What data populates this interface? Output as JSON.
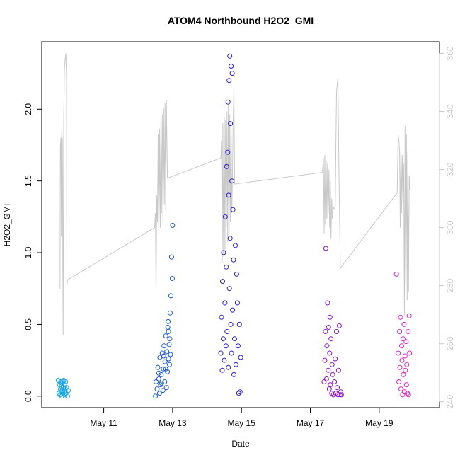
{
  "chart_data": {
    "type": "scatter",
    "title": "ATOM4 Northbound H2O2_GMI",
    "xlabel": "Date",
    "ylabel": "H2O2_GMI",
    "x_axis": {
      "unit": "days since May 1",
      "range": [
        9.2,
        20.75
      ],
      "ticks": [
        {
          "value": 11,
          "label": "May 11"
        },
        {
          "value": 13,
          "label": "May 13"
        },
        {
          "value": 15,
          "label": "May 15"
        },
        {
          "value": 17,
          "label": "May 17"
        },
        {
          "value": 19,
          "label": "May 19"
        }
      ]
    },
    "y_left": {
      "range": [
        -0.08,
        2.47
      ],
      "ticks": [
        0.0,
        0.5,
        1.0,
        1.5,
        2.0
      ],
      "tick_labels": [
        "0.0",
        "0.5",
        "1.0",
        "1.5",
        "2.0"
      ]
    },
    "y_right": {
      "range": [
        238,
        364
      ],
      "ticks": [
        240,
        260,
        280,
        300,
        320,
        340,
        360
      ],
      "tick_labels": [
        "240",
        "260",
        "280",
        "300",
        "320",
        "340",
        "360"
      ],
      "color": "#c8c8c8"
    },
    "series": [
      {
        "marker": "open-circle",
        "color": "#13a4e8",
        "points": [
          [
            9.68,
            0.11
          ],
          [
            9.7,
            0.02
          ],
          [
            9.72,
            0.08
          ],
          [
            9.73,
            0.01
          ],
          [
            9.74,
            0.05
          ],
          [
            9.75,
            0.1
          ],
          [
            9.76,
            0.03
          ],
          [
            9.77,
            0.07
          ],
          [
            9.78,
            0.0
          ],
          [
            9.79,
            0.09
          ],
          [
            9.8,
            0.04
          ],
          [
            9.81,
            0.1
          ],
          [
            9.82,
            0.02
          ],
          [
            9.83,
            0.06
          ],
          [
            9.84,
            0.11
          ],
          [
            9.85,
            0.03
          ],
          [
            9.86,
            0.08
          ],
          [
            9.87,
            0.01
          ],
          [
            9.88,
            0.05
          ],
          [
            9.89,
            0.1
          ],
          [
            9.9,
            0.02
          ],
          [
            9.92,
            0.06
          ],
          [
            9.95,
            0.0
          ],
          [
            9.97,
            0.04
          ]
        ]
      },
      {
        "marker": "open-circle",
        "color": "#1a5ad6",
        "points": [
          [
            12.5,
            0.0
          ],
          [
            12.52,
            0.1
          ],
          [
            12.55,
            0.05
          ],
          [
            12.57,
            0.2
          ],
          [
            12.6,
            0.12
          ],
          [
            12.62,
            0.02
          ],
          [
            12.63,
            0.27
          ],
          [
            12.65,
            0.08
          ],
          [
            12.67,
            0.15
          ],
          [
            12.7,
            0.3
          ],
          [
            12.72,
            0.04
          ],
          [
            12.73,
            0.19
          ],
          [
            12.75,
            0.35
          ],
          [
            12.77,
            0.1
          ],
          [
            12.78,
            0.24
          ],
          [
            12.8,
            0.42
          ],
          [
            12.82,
            0.06
          ],
          [
            12.83,
            0.31
          ],
          [
            12.85,
            0.17
          ],
          [
            12.86,
            0.48
          ],
          [
            12.87,
            0.52
          ],
          [
            12.88,
            0.26
          ],
          [
            12.9,
            0.36
          ],
          [
            12.91,
            0.22
          ],
          [
            12.92,
            0.4
          ],
          [
            12.93,
            0.58
          ],
          [
            12.94,
            0.29
          ],
          [
            12.95,
            0.7
          ],
          [
            12.97,
            0.97
          ],
          [
            12.99,
            0.82
          ],
          [
            13.0,
            1.19
          ],
          [
            12.6,
            0.16
          ],
          [
            12.68,
            0.09
          ],
          [
            12.74,
            0.28
          ],
          [
            12.8,
            0.19
          ],
          [
            12.88,
            0.45
          ]
        ]
      },
      {
        "marker": "open-circle",
        "color": "#2a1bd2",
        "points": [
          [
            14.4,
            0.3
          ],
          [
            14.42,
            0.55
          ],
          [
            14.44,
            0.18
          ],
          [
            14.45,
            0.8
          ],
          [
            14.47,
            0.4
          ],
          [
            14.48,
            1.0
          ],
          [
            14.5,
            0.25
          ],
          [
            14.52,
            0.65
          ],
          [
            14.53,
            1.25
          ],
          [
            14.55,
            0.35
          ],
          [
            14.56,
            0.9
          ],
          [
            14.57,
            1.6
          ],
          [
            14.58,
            0.45
          ],
          [
            14.6,
            1.7
          ],
          [
            14.61,
            2.05
          ],
          [
            14.62,
            0.2
          ],
          [
            14.63,
            1.4
          ],
          [
            14.64,
            2.2
          ],
          [
            14.65,
            0.75
          ],
          [
            14.66,
            2.37
          ],
          [
            14.67,
            1.1
          ],
          [
            14.68,
            1.9
          ],
          [
            14.69,
            0.5
          ],
          [
            14.7,
            2.3
          ],
          [
            14.71,
            0.3
          ],
          [
            14.72,
            1.5
          ],
          [
            14.73,
            2.25
          ],
          [
            14.74,
            0.6
          ],
          [
            14.75,
            1.3
          ],
          [
            14.77,
            0.95
          ],
          [
            14.78,
            0.15
          ],
          [
            14.8,
            0.4
          ],
          [
            14.82,
            1.05
          ],
          [
            14.84,
            0.22
          ],
          [
            14.86,
            0.85
          ],
          [
            14.88,
            0.65
          ],
          [
            14.9,
            0.35
          ],
          [
            14.92,
            0.02
          ],
          [
            14.94,
            0.5
          ],
          [
            14.96,
            0.03
          ],
          [
            14.98,
            0.27
          ]
        ]
      },
      {
        "marker": "open-circle",
        "color": "#8a12d8",
        "points": [
          [
            17.4,
            0.1
          ],
          [
            17.42,
            0.25
          ],
          [
            17.44,
            0.45
          ],
          [
            17.45,
            1.03
          ],
          [
            17.47,
            0.12
          ],
          [
            17.48,
            0.35
          ],
          [
            17.5,
            0.65
          ],
          [
            17.52,
            0.18
          ],
          [
            17.53,
            0.48
          ],
          [
            17.55,
            0.05
          ],
          [
            17.56,
            0.3
          ],
          [
            17.57,
            0.55
          ],
          [
            17.58,
            0.08
          ],
          [
            17.6,
            0.4
          ],
          [
            17.62,
            0.02
          ],
          [
            17.63,
            0.22
          ],
          [
            17.65,
            0.15
          ],
          [
            17.67,
            0.01
          ],
          [
            17.7,
            0.1
          ],
          [
            17.72,
            0.26
          ],
          [
            17.74,
            0.02
          ],
          [
            17.76,
            0.45
          ],
          [
            17.78,
            0.06
          ],
          [
            17.8,
            0.01
          ],
          [
            17.82,
            0.18
          ],
          [
            17.84,
            0.49
          ],
          [
            17.86,
            0.01
          ],
          [
            17.88,
            0.03
          ],
          [
            17.9,
            0.01
          ]
        ]
      },
      {
        "marker": "open-circle",
        "color": "#e621c8",
        "points": [
          [
            19.5,
            0.85
          ],
          [
            19.55,
            0.3
          ],
          [
            19.57,
            0.1
          ],
          [
            19.59,
            0.45
          ],
          [
            19.6,
            0.2
          ],
          [
            19.62,
            0.55
          ],
          [
            19.63,
            0.05
          ],
          [
            19.65,
            0.35
          ],
          [
            19.66,
            0.25
          ],
          [
            19.68,
            0.01
          ],
          [
            19.69,
            0.4
          ],
          [
            19.7,
            0.15
          ],
          [
            19.72,
            0.5
          ],
          [
            19.73,
            0.03
          ],
          [
            19.75,
            0.28
          ],
          [
            19.76,
            0.18
          ],
          [
            19.78,
            0.38
          ],
          [
            19.79,
            0.08
          ],
          [
            19.8,
            0.22
          ],
          [
            19.82,
            0.02
          ],
          [
            19.84,
            0.45
          ],
          [
            19.85,
            0.01
          ],
          [
            19.87,
            0.56
          ],
          [
            19.88,
            0.3
          ]
        ]
      },
      {
        "type": "line",
        "axis": "right",
        "color": "#c8c8c8",
        "points": [
          [
            9.73,
            279
          ],
          [
            9.74,
            328
          ],
          [
            9.76,
            331
          ],
          [
            9.77,
            297
          ],
          [
            9.78,
            333
          ],
          [
            9.8,
            330
          ],
          [
            9.82,
            263
          ],
          [
            9.84,
            338
          ],
          [
            9.86,
            355
          ],
          [
            9.88,
            358
          ],
          [
            9.9,
            360
          ],
          [
            9.92,
            351
          ],
          [
            9.93,
            280
          ],
          [
            9.95,
            282
          ],
          [
            12.48,
            300
          ],
          [
            12.5,
            305
          ],
          [
            12.52,
            277
          ],
          [
            12.54,
            311
          ],
          [
            12.56,
            302
          ],
          [
            12.58,
            332
          ],
          [
            12.6,
            298
          ],
          [
            12.62,
            334
          ],
          [
            12.64,
            300
          ],
          [
            12.66,
            337
          ],
          [
            12.68,
            305
          ],
          [
            12.7,
            339
          ],
          [
            12.72,
            302
          ],
          [
            12.74,
            341
          ],
          [
            12.76,
            308
          ],
          [
            12.78,
            343
          ],
          [
            12.8,
            306
          ],
          [
            12.82,
            344
          ],
          [
            12.85,
            317
          ],
          [
            14.4,
            324
          ],
          [
            14.42,
            330
          ],
          [
            14.44,
            288
          ],
          [
            14.46,
            336
          ],
          [
            14.48,
            290
          ],
          [
            14.5,
            338
          ],
          [
            14.52,
            292
          ],
          [
            14.54,
            337
          ],
          [
            14.56,
            300
          ],
          [
            14.58,
            340
          ],
          [
            14.6,
            295
          ],
          [
            14.62,
            342
          ],
          [
            14.64,
            298
          ],
          [
            14.66,
            339
          ],
          [
            14.68,
            302
          ],
          [
            14.7,
            335
          ],
          [
            14.72,
            305
          ],
          [
            14.74,
            320
          ],
          [
            14.76,
            337
          ],
          [
            14.78,
            348
          ],
          [
            14.8,
            315
          ],
          [
            17.35,
            319
          ],
          [
            17.38,
            324
          ],
          [
            17.4,
            298
          ],
          [
            17.42,
            325
          ],
          [
            17.44,
            301
          ],
          [
            17.46,
            323
          ],
          [
            17.48,
            303
          ],
          [
            17.5,
            322
          ],
          [
            17.52,
            305
          ],
          [
            17.54,
            320
          ],
          [
            17.56,
            300
          ],
          [
            17.58,
            316
          ],
          [
            17.6,
            296
          ],
          [
            17.62,
            310
          ],
          [
            17.64,
            303
          ],
          [
            17.66,
            306
          ],
          [
            17.68,
            307
          ],
          [
            17.72,
            306
          ],
          [
            17.76,
            347
          ],
          [
            17.78,
            349
          ],
          [
            17.8,
            352
          ],
          [
            17.83,
            320
          ],
          [
            17.87,
            286
          ],
          [
            19.52,
            312
          ],
          [
            19.55,
            332
          ],
          [
            19.57,
            330
          ],
          [
            19.59,
            326
          ],
          [
            19.61,
            300
          ],
          [
            19.63,
            328
          ],
          [
            19.65,
            305
          ],
          [
            19.67,
            325
          ],
          [
            19.69,
            310
          ],
          [
            19.71,
            322
          ],
          [
            19.73,
            270
          ],
          [
            19.75,
            335
          ],
          [
            19.77,
            280
          ],
          [
            19.79,
            332
          ],
          [
            19.81,
            275
          ],
          [
            19.83,
            326
          ],
          [
            19.85,
            278
          ],
          [
            19.87,
            318
          ],
          [
            19.89,
            313
          ]
        ]
      }
    ],
    "grid": false,
    "legend": "none"
  }
}
